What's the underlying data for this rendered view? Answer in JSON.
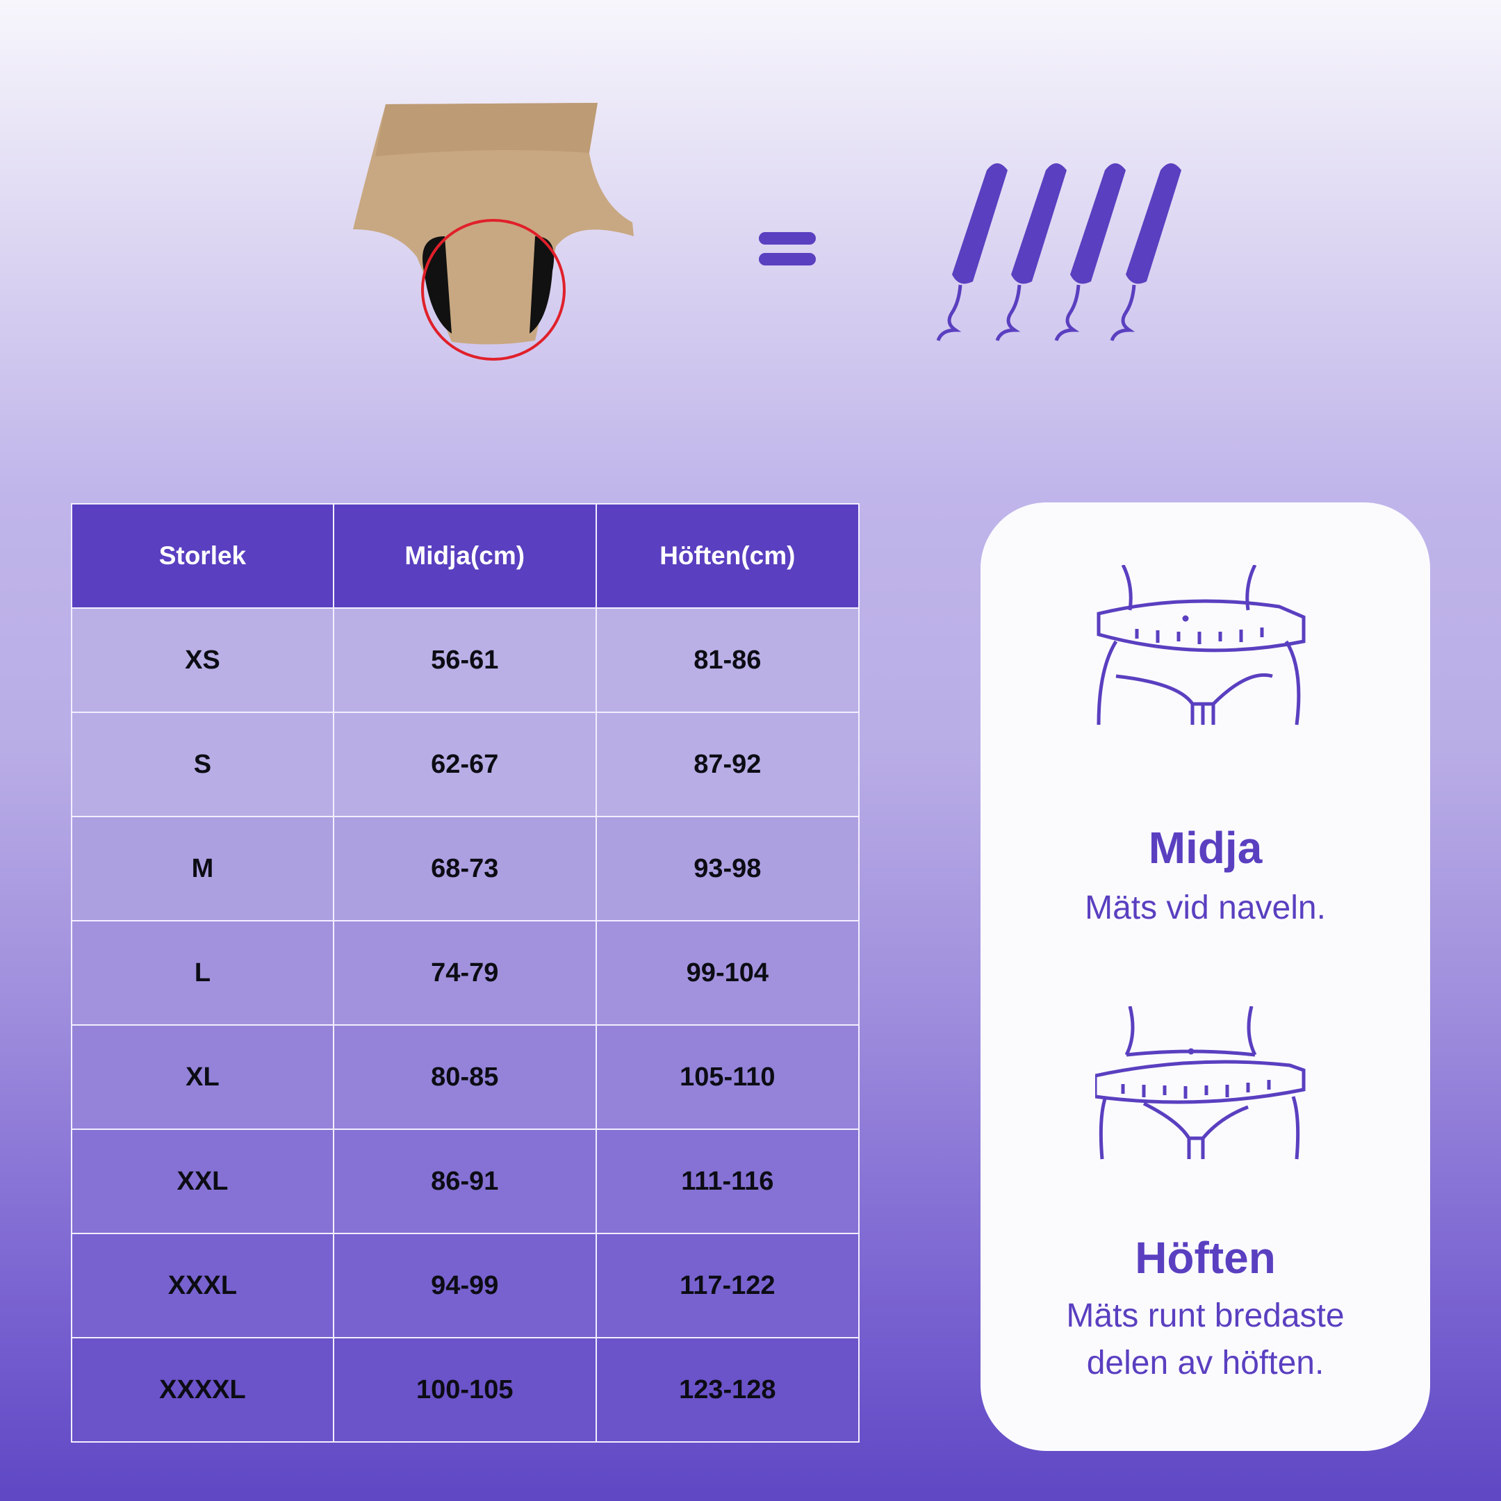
{
  "table": {
    "headers": [
      "Storlek",
      "Midja(cm)",
      "Höften(cm)"
    ],
    "rows": [
      [
        "XS",
        "56-61",
        "81-86"
      ],
      [
        "S",
        "62-67",
        "87-92"
      ],
      [
        "M",
        "68-73",
        "93-98"
      ],
      [
        "L",
        "74-79",
        "99-104"
      ],
      [
        "XL",
        "80-85",
        "105-110"
      ],
      [
        "XXL",
        "86-91",
        "111-116"
      ],
      [
        "XXXL",
        "94-99",
        "117-122"
      ],
      [
        "XXXXL",
        "100-105",
        "123-128"
      ]
    ]
  },
  "card": {
    "waist_title": "Midja",
    "waist_desc": "Mäts vid naveln.",
    "hip_title": "Höften",
    "hip_desc_1": "Mäts runt bredaste",
    "hip_desc_2": "delen av höften."
  },
  "colors": {
    "accent": "#5a3fc0",
    "product": "#c8a882",
    "highlight": "#e0202a"
  },
  "icons": [
    "period-underwear-image",
    "equals-icon",
    "tampon-icon",
    "waist-measure-icon",
    "hip-measure-icon"
  ]
}
